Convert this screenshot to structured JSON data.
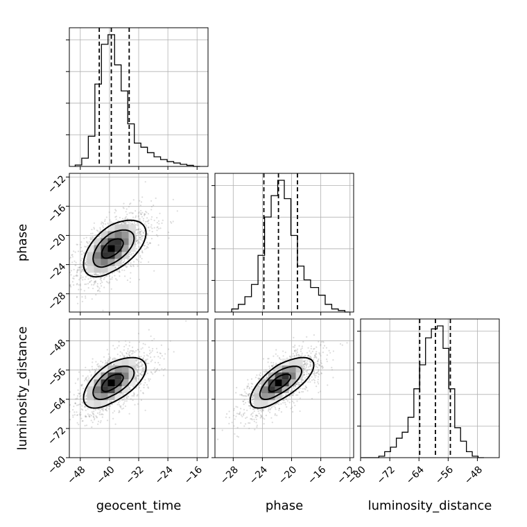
{
  "chart_data": {
    "type": "corner",
    "parameters": [
      "geocent_time",
      "phase",
      "luminosity_distance"
    ],
    "axes": {
      "geocent_time": {
        "label": "geocent_time",
        "range": [
          -51,
          -13
        ],
        "ticks": [
          -48,
          -40,
          -32,
          -24,
          -16
        ],
        "tick_labels": [
          "−48",
          "−40",
          "−32",
          "−24",
          "−16"
        ]
      },
      "phase": {
        "label": "phase",
        "range": [
          -30.5,
          -11.5
        ],
        "ticks": [
          -28,
          -24,
          -20,
          -16,
          -12
        ],
        "tick_labels": [
          "−28",
          "−24",
          "−20",
          "−16",
          "−12"
        ]
      },
      "luminosity_distance": {
        "label": "luminosity_distance",
        "range": [
          -80,
          -42
        ],
        "ticks": [
          -80,
          -72,
          -64,
          -56,
          -48
        ],
        "tick_labels": [
          "−80",
          "−72",
          "−64",
          "−56",
          "−48"
        ]
      }
    },
    "grid": true,
    "quantile_lines": {
      "geocent_time": [
        -42.8,
        -39.5,
        -34.6
      ],
      "phase": [
        -23.8,
        -21.8,
        -19.2
      ],
      "luminosity_distance": [
        -63.8,
        -59.5,
        -55.4
      ]
    },
    "marginals": {
      "geocent_time": {
        "bin_edges": [
          -49.4,
          -47.6,
          -45.8,
          -44.0,
          -42.2,
          -40.4,
          -38.6,
          -36.8,
          -35.0,
          -33.2,
          -31.4,
          -29.6,
          -27.8,
          -26.0,
          -24.2,
          -22.4,
          -20.6,
          -18.8,
          -17.0,
          -15.2
        ],
        "counts": [
          0.01,
          0.06,
          0.22,
          0.6,
          0.89,
          0.96,
          0.74,
          0.55,
          0.31,
          0.17,
          0.14,
          0.1,
          0.07,
          0.05,
          0.035,
          0.025,
          0.015,
          0.008,
          0.0
        ]
      },
      "phase": {
        "bin_edges": [
          -28.2,
          -27.3,
          -26.4,
          -25.5,
          -24.6,
          -23.7,
          -22.8,
          -21.9,
          -21.0,
          -20.1,
          -19.2,
          -18.3,
          -17.4,
          -16.3,
          -15.4,
          -14.5,
          -13.6,
          -12.7,
          -12.1
        ],
        "counts": [
          0.02,
          0.05,
          0.1,
          0.18,
          0.37,
          0.62,
          0.76,
          0.86,
          0.74,
          0.5,
          0.3,
          0.21,
          0.16,
          0.11,
          0.05,
          0.02,
          0.01,
          0.0
        ]
      },
      "luminosity_distance": {
        "bin_edges": [
          -79.8,
          -78.2,
          -76.6,
          -75.0,
          -73.4,
          -71.8,
          -70.2,
          -68.6,
          -67.0,
          -65.4,
          -63.8,
          -62.2,
          -60.6,
          -59.0,
          -57.4,
          -55.8,
          -54.2,
          -52.6,
          -51.0,
          -49.4,
          -47.8,
          -46.2
        ],
        "counts": [
          0.0,
          0.0,
          0.0,
          0.01,
          0.04,
          0.07,
          0.13,
          0.17,
          0.27,
          0.46,
          0.62,
          0.8,
          0.86,
          0.88,
          0.73,
          0.46,
          0.2,
          0.11,
          0.04,
          0.01,
          0.0
        ]
      }
    },
    "correlations": {
      "phase|geocent_time": 0.55,
      "luminosity_distance|geocent_time": 0.6,
      "luminosity_distance|phase": 0.7
    }
  }
}
